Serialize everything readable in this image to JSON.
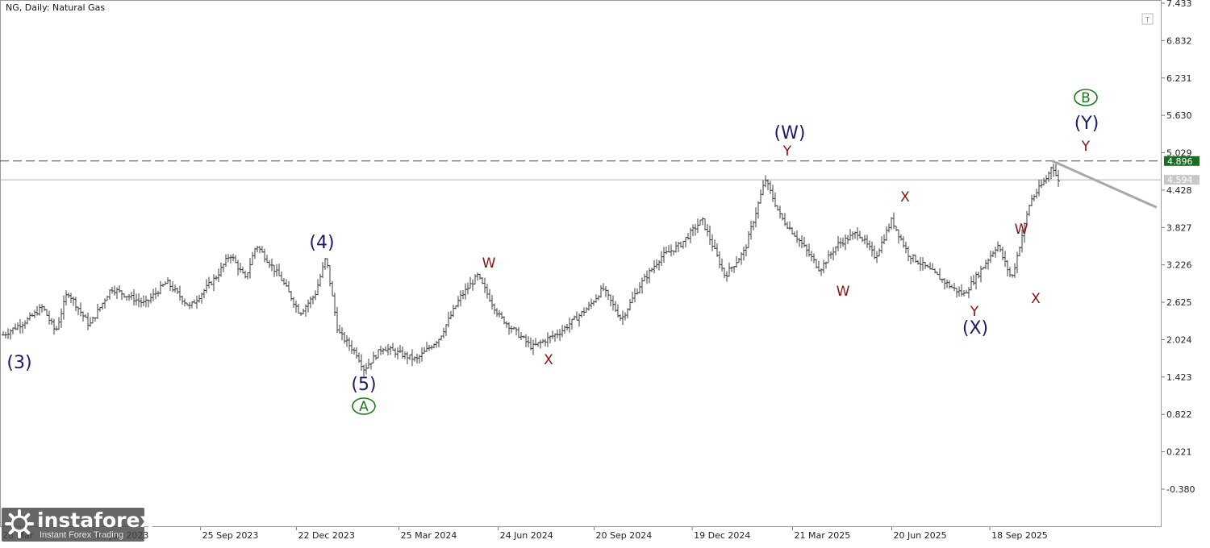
{
  "header": {
    "symbol_label": "NG, Daily:  Natural Gas"
  },
  "colors": {
    "bars": "#3c3c3c",
    "level_line": "#1b6b24",
    "current_line": "#b0b0b0",
    "projection": "#a8a8a8",
    "label_navy": "#1a1a6e",
    "label_red": "#8b1212",
    "label_green": "#1f7a1f"
  },
  "chart_data": {
    "type": "ohlc",
    "timeframe": "Daily",
    "instrument": "Natural Gas",
    "y_ticks": [
      "7.433",
      "6.832",
      "6.231",
      "5.630",
      "5.029",
      "4.428",
      "3.827",
      "3.226",
      "2.625",
      "2.024",
      "1.423",
      "0.822",
      "0.221",
      "-0.380"
    ],
    "x_ticks": [
      "28 Mar",
      "19 Jun 2023",
      "25 Sep 2023",
      "22 Dec 2023",
      "25 Mar 2024",
      "24 Jun 2024",
      "20 Sep 2024",
      "19 Dec 2024",
      "21 Mar 2025",
      "20 Jun 2025",
      "18 Sep 2025"
    ],
    "price_levels": [
      {
        "label": "4.896",
        "value": 4.896,
        "style": "dashed-green"
      },
      {
        "label": "4.594",
        "value": 4.594,
        "style": "current-grey"
      }
    ],
    "price_path": [
      [
        "2023-03-28",
        2.1
      ],
      [
        "2023-04-20",
        2.35
      ],
      [
        "2023-05-03",
        2.55
      ],
      [
        "2023-05-15",
        2.15
      ],
      [
        "2023-05-26",
        2.8
      ],
      [
        "2023-06-15",
        2.25
      ],
      [
        "2023-07-05",
        2.85
      ],
      [
        "2023-08-05",
        2.6
      ],
      [
        "2023-08-25",
        2.95
      ],
      [
        "2023-09-15",
        2.55
      ],
      [
        "2023-10-10",
        3.05
      ],
      [
        "2023-10-22",
        3.4
      ],
      [
        "2023-11-05",
        3.0
      ],
      [
        "2023-11-15",
        3.55
      ],
      [
        "2023-12-08",
        3.0
      ],
      [
        "2023-12-25",
        2.45
      ],
      [
        "2024-01-08",
        2.75
      ],
      [
        "2024-01-18",
        3.35
      ],
      [
        "2024-01-29",
        2.15
      ],
      [
        "2024-02-15",
        1.8
      ],
      [
        "2024-02-22",
        1.55
      ],
      [
        "2024-03-10",
        1.9
      ],
      [
        "2024-04-10",
        1.7
      ],
      [
        "2024-05-01",
        2.05
      ],
      [
        "2024-05-20",
        2.7
      ],
      [
        "2024-06-05",
        3.05
      ],
      [
        "2024-06-25",
        2.4
      ],
      [
        "2024-07-25",
        1.9
      ],
      [
        "2024-08-20",
        2.15
      ],
      [
        "2024-09-15",
        2.55
      ],
      [
        "2024-09-28",
        2.85
      ],
      [
        "2024-10-15",
        2.35
      ],
      [
        "2024-11-01",
        2.9
      ],
      [
        "2024-11-20",
        3.35
      ],
      [
        "2024-12-08",
        3.55
      ],
      [
        "2024-12-28",
        3.95
      ],
      [
        "2025-01-18",
        3.05
      ],
      [
        "2025-02-05",
        3.45
      ],
      [
        "2025-02-24",
        4.6
      ],
      [
        "2025-03-10",
        4.0
      ],
      [
        "2025-03-28",
        3.6
      ],
      [
        "2025-04-15",
        3.15
      ],
      [
        "2025-05-01",
        3.55
      ],
      [
        "2025-05-20",
        3.75
      ],
      [
        "2025-06-05",
        3.35
      ],
      [
        "2025-06-20",
        3.95
      ],
      [
        "2025-07-05",
        3.4
      ],
      [
        "2025-07-28",
        3.1
      ],
      [
        "2025-08-15",
        2.85
      ],
      [
        "2025-08-25",
        2.75
      ],
      [
        "2025-09-10",
        3.15
      ],
      [
        "2025-09-25",
        3.55
      ],
      [
        "2025-10-08",
        3.0
      ],
      [
        "2025-10-25",
        4.25
      ],
      [
        "2025-11-10",
        4.65
      ],
      [
        "2025-11-14",
        4.85
      ],
      [
        "2025-11-20",
        4.55
      ]
    ],
    "projection": [
      [
        "2025-11-14",
        4.9
      ],
      [
        "2026-02-18",
        4.15
      ]
    ],
    "wave_labels": [
      {
        "text": "(3)",
        "date": "2023-03-28",
        "price": 2.0,
        "color": "navy",
        "size": "major"
      },
      {
        "text": "(4)",
        "date": "2024-01-16",
        "price": 3.35,
        "color": "navy",
        "size": "major"
      },
      {
        "text": "(5)",
        "date": "2024-02-22",
        "price": 1.55,
        "color": "navy",
        "size": "major"
      },
      {
        "text": "A",
        "date": "2024-02-22",
        "price": 1.55,
        "color": "green",
        "size": "circled"
      },
      {
        "text": "W",
        "date": "2024-06-05",
        "price": 3.05,
        "color": "red",
        "size": "minor"
      },
      {
        "text": "X",
        "date": "2024-07-25",
        "price": 1.9,
        "color": "red",
        "size": "minor"
      },
      {
        "text": "(W)",
        "date": "2025-02-24",
        "price": 4.6,
        "color": "navy",
        "size": "major"
      },
      {
        "text": "Y",
        "date": "2025-02-24",
        "price": 4.6,
        "color": "red",
        "size": "minor"
      },
      {
        "text": "W",
        "date": "2025-04-15",
        "price": 3.15,
        "color": "red",
        "size": "minor"
      },
      {
        "text": "X",
        "date": "2025-06-20",
        "price": 3.95,
        "color": "red",
        "size": "minor"
      },
      {
        "text": "Y",
        "date": "2025-08-25",
        "price": 2.75,
        "color": "red",
        "size": "minor"
      },
      {
        "text": "(X)",
        "date": "2025-08-25",
        "price": 2.75,
        "color": "navy",
        "size": "major"
      },
      {
        "text": "W",
        "date": "2025-09-25",
        "price": 3.55,
        "color": "red",
        "size": "minor"
      },
      {
        "text": "X",
        "date": "2025-10-08",
        "price": 3.0,
        "color": "red",
        "size": "minor"
      },
      {
        "text": "Y",
        "date": "2025-11-14",
        "price": 4.85,
        "color": "red",
        "size": "minor"
      },
      {
        "text": "(Y)",
        "date": "2025-11-14",
        "price": 4.85,
        "color": "navy",
        "size": "major"
      },
      {
        "text": "B",
        "date": "2025-11-14",
        "price": 4.85,
        "color": "green",
        "size": "circled"
      }
    ]
  },
  "watermark": {
    "brand": "instaforex",
    "tagline": "Instant Forex Trading"
  }
}
